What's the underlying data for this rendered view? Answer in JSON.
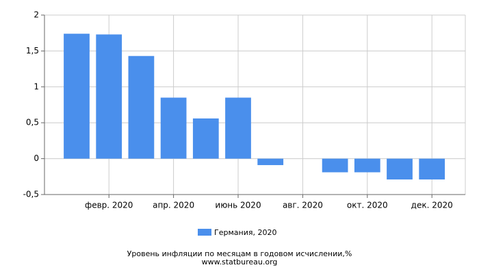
{
  "chart_data": {
    "type": "bar",
    "title": "Уровень инфляции по месяцам в годовом исчислении,%",
    "source": "www.statbureau.org",
    "categories": [
      null,
      "февр. 2020",
      null,
      "апр. 2020",
      null,
      "июнь 2020",
      null,
      "авг. 2020",
      null,
      "окт. 2020",
      null,
      "дек. 2020"
    ],
    "series": [
      {
        "name": "Германия, 2020",
        "color": "#4a8fec",
        "values": [
          1.74,
          1.73,
          1.43,
          0.85,
          0.56,
          0.85,
          -0.09,
          0,
          -0.19,
          -0.19,
          -0.29,
          -0.29
        ]
      }
    ],
    "ylim": [
      -0.5,
      2
    ],
    "yticks": [
      {
        "value": -0.5,
        "label": "-0,5"
      },
      0,
      {
        "value": 0.5,
        "label": "0,5"
      },
      1,
      {
        "value": 1.5,
        "label": "1,5"
      },
      2
    ],
    "grid": true
  }
}
